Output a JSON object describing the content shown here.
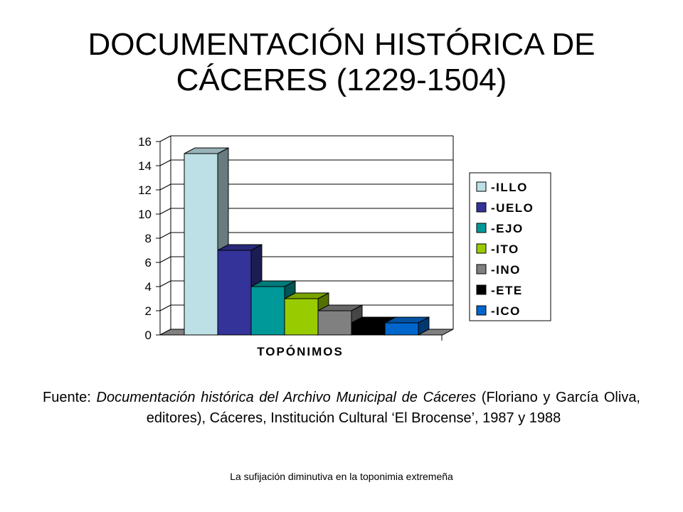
{
  "slide": {
    "title_line1": "DOCUMENTACIÓN HISTÓRICA DE",
    "title_line2": "CÁCERES (1229-1504)"
  },
  "chart_data": {
    "type": "bar",
    "three_d": true,
    "title": "",
    "xlabel": "TOPÓNIMOS",
    "ylabel": "",
    "ylim": [
      0,
      16
    ],
    "yticks": [
      0,
      2,
      4,
      6,
      8,
      10,
      12,
      14,
      16
    ],
    "grid": true,
    "legend_position": "right",
    "series": [
      {
        "name": "-ILLO",
        "value": 15,
        "color": "#bde0e6"
      },
      {
        "name": "-UELO",
        "value": 7,
        "color": "#333399"
      },
      {
        "name": "-EJO",
        "value": 4,
        "color": "#009999"
      },
      {
        "name": "-ITO",
        "value": 3,
        "color": "#99cc00"
      },
      {
        "name": "-INO",
        "value": 2,
        "color": "#808080"
      },
      {
        "name": "-ETE",
        "value": 1,
        "color": "#000000"
      },
      {
        "name": "-ICO",
        "value": 1,
        "color": "#0066cc"
      }
    ]
  },
  "source": {
    "prefix": "Fuente: ",
    "work_title": "Documentación histórica del Archivo Municipal de Cáceres",
    "rest": " (Floriano y García Oliva, editores), Cáceres, Institución Cultural ‘El Brocense’, 1987 y 1988"
  },
  "footer": {
    "text": "La sufijación diminutiva en la toponimia extremeña"
  }
}
